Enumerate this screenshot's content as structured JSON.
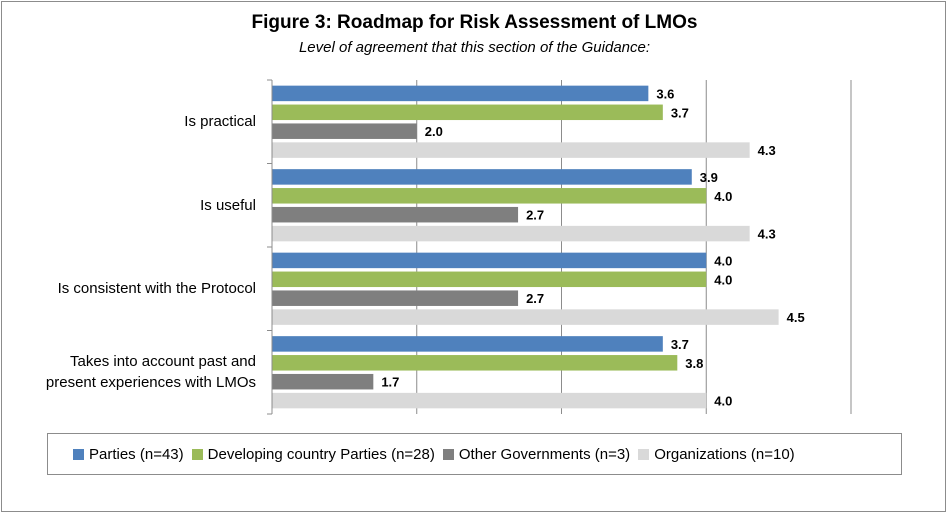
{
  "chart_data": {
    "type": "bar",
    "orientation": "horizontal",
    "title": "Figure 3: Roadmap for Risk Assessment of LMOs",
    "subtitle": "Level of agreement that this section of the Guidance:",
    "categories": [
      "Is practical",
      "Is useful",
      "Is consistent with the Protocol",
      "Takes into account past and present experiences with LMOs"
    ],
    "category_lines": [
      [
        "Is practical"
      ],
      [
        "Is useful"
      ],
      [
        "Is consistent with the Protocol"
      ],
      [
        "Takes into account past and",
        "present experiences with LMOs"
      ]
    ],
    "series": [
      {
        "name": "Parties (n=43)",
        "color": "#4f81bd",
        "values": [
          3.6,
          3.9,
          4.0,
          3.7
        ]
      },
      {
        "name": "Developing country Parties (n=28)",
        "color": "#9bbb59",
        "values": [
          3.7,
          4.0,
          4.0,
          3.8
        ]
      },
      {
        "name": "Other Governments (n=3)",
        "color": "#7f7f7f",
        "values": [
          2.0,
          2.7,
          2.7,
          1.7
        ]
      },
      {
        "name": "Organizations (n=10)",
        "color": "#d9d9d9",
        "values": [
          4.3,
          4.3,
          4.5,
          4.0
        ]
      }
    ],
    "xlim": [
      1,
      5
    ],
    "grid": true,
    "legend_position": "bottom",
    "data_labels": true
  }
}
